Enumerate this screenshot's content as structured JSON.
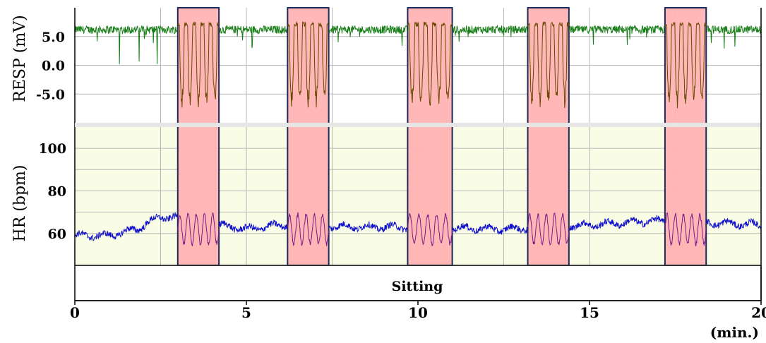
{
  "chart_data": {
    "type": "line",
    "x_range": [
      0,
      20
    ],
    "xlabel": "(min.)",
    "x_ticks": [
      "0",
      "5",
      "10",
      "15",
      "20"
    ],
    "condition_label": "Sitting",
    "colors": {
      "resp_line": "#1a7f1a",
      "resp_line_band": "#6b4a00",
      "hr_line": "#1010cc",
      "hr_line_band": "#7a1a8a",
      "band_fill": "#ffb3b3",
      "band_border": "#1a2a5a",
      "hr_background": "#fafde6",
      "grid": "#b8b8b8"
    },
    "bands_min": [
      [
        3.0,
        4.2
      ],
      [
        6.2,
        7.4
      ],
      [
        9.7,
        11.0
      ],
      [
        13.2,
        14.4
      ],
      [
        17.2,
        18.4
      ]
    ],
    "panels": [
      {
        "name": "resp",
        "ylabel": "RESP (mV)",
        "y_range": [
          -10.0,
          10.0
        ],
        "y_ticks": [
          "5.0",
          "0.0",
          "-5.0"
        ],
        "y_tick_values": [
          5,
          0,
          -5
        ],
        "baseline_mV": 6.2,
        "band_oscillation": {
          "max_mV": 7.5,
          "min_mV": -7.5,
          "cycles_per_band": 5
        }
      },
      {
        "name": "hr",
        "ylabel": "HR (bpm)",
        "y_range": [
          45,
          110
        ],
        "y_ticks": [
          "100",
          "80",
          "60"
        ],
        "y_tick_values": [
          100,
          80,
          60
        ],
        "baseline_bpm": [
          {
            "t": 0.0,
            "v": 59
          },
          {
            "t": 1.0,
            "v": 59
          },
          {
            "t": 1.8,
            "v": 62
          },
          {
            "t": 2.5,
            "v": 68
          },
          {
            "t": 3.0,
            "v": 67
          },
          {
            "t": 5.0,
            "v": 62
          },
          {
            "t": 6.0,
            "v": 64
          },
          {
            "t": 8.5,
            "v": 63
          },
          {
            "t": 10.0,
            "v": 63
          },
          {
            "t": 12.5,
            "v": 62
          },
          {
            "t": 15.0,
            "v": 64
          },
          {
            "t": 17.0,
            "v": 66
          },
          {
            "t": 20.0,
            "v": 64
          }
        ],
        "band_oscillation": {
          "max_bpm": 69,
          "min_bpm": 55,
          "cycles_per_band": 5
        }
      }
    ]
  }
}
